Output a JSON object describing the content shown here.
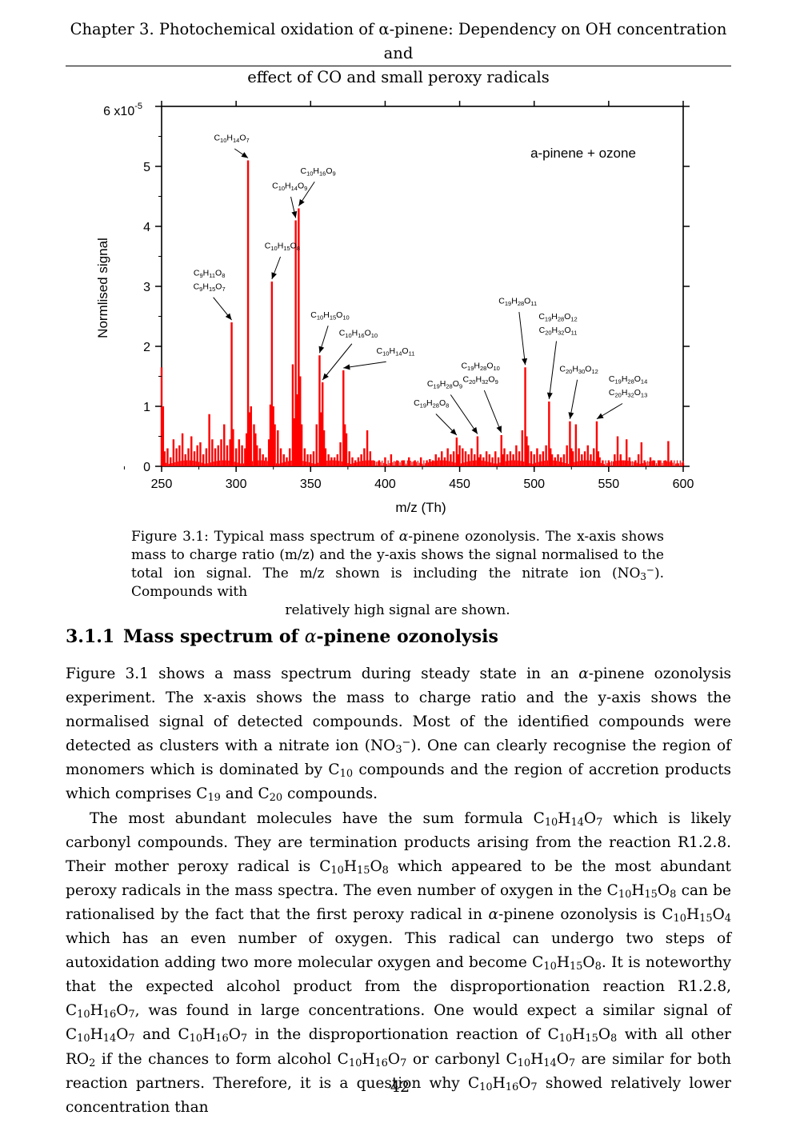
{
  "running_head": {
    "line1": "Chapter 3.  Photochemical oxidation of α-pinene: Dependency on OH concentration and",
    "line2": "effect of CO and small peroxy radicals"
  },
  "chart_data": {
    "type": "bar",
    "inset_title": "a-pinene + ozone",
    "xlabel": "m/z (Th)",
    "ylabel": "Normlised signal",
    "xlim": [
      250,
      600
    ],
    "ylim": [
      0,
      6e-05
    ],
    "x_ticks": [
      "250",
      "300",
      "350",
      "400",
      "450",
      "500",
      "550",
      "600"
    ],
    "y_ticks": [
      "0",
      "1",
      "2",
      "3",
      "4",
      "5",
      "6 x10"
    ],
    "y_multiplier": "x10",
    "y_exponent": "-5",
    "bar_color": "#ff0000",
    "peaks": [
      {
        "x": 250,
        "y": 1.65
      },
      {
        "x": 251,
        "y": 1.0
      },
      {
        "x": 252,
        "y": 0.25
      },
      {
        "x": 254,
        "y": 0.3
      },
      {
        "x": 256,
        "y": 0.15
      },
      {
        "x": 258,
        "y": 0.45
      },
      {
        "x": 260,
        "y": 0.3
      },
      {
        "x": 262,
        "y": 0.35
      },
      {
        "x": 264,
        "y": 0.55
      },
      {
        "x": 266,
        "y": 0.2
      },
      {
        "x": 268,
        "y": 0.3
      },
      {
        "x": 270,
        "y": 0.5
      },
      {
        "x": 272,
        "y": 0.25
      },
      {
        "x": 274,
        "y": 0.35
      },
      {
        "x": 276,
        "y": 0.4
      },
      {
        "x": 278,
        "y": 0.2
      },
      {
        "x": 280,
        "y": 0.3
      },
      {
        "x": 282,
        "y": 0.87
      },
      {
        "x": 284,
        "y": 0.45
      },
      {
        "x": 286,
        "y": 0.3
      },
      {
        "x": 288,
        "y": 0.35
      },
      {
        "x": 290,
        "y": 0.45
      },
      {
        "x": 292,
        "y": 0.7
      },
      {
        "x": 294,
        "y": 0.35
      },
      {
        "x": 296,
        "y": 0.45
      },
      {
        "x": 297,
        "y": 2.4
      },
      {
        "x": 298,
        "y": 0.62
      },
      {
        "x": 300,
        "y": 0.3
      },
      {
        "x": 302,
        "y": 0.45
      },
      {
        "x": 304,
        "y": 0.35
      },
      {
        "x": 306,
        "y": 0.3
      },
      {
        "x": 307,
        "y": 0.55
      },
      {
        "x": 308,
        "y": 5.1
      },
      {
        "x": 309,
        "y": 0.9
      },
      {
        "x": 310,
        "y": 1.0
      },
      {
        "x": 312,
        "y": 0.7
      },
      {
        "x": 313,
        "y": 0.55
      },
      {
        "x": 314,
        "y": 0.35
      },
      {
        "x": 316,
        "y": 0.3
      },
      {
        "x": 318,
        "y": 0.2
      },
      {
        "x": 320,
        "y": 0.15
      },
      {
        "x": 322,
        "y": 0.45
      },
      {
        "x": 323,
        "y": 1.03
      },
      {
        "x": 324,
        "y": 3.08
      },
      {
        "x": 325,
        "y": 1.0
      },
      {
        "x": 326,
        "y": 0.7
      },
      {
        "x": 328,
        "y": 0.6
      },
      {
        "x": 330,
        "y": 0.3
      },
      {
        "x": 332,
        "y": 0.2
      },
      {
        "x": 334,
        "y": 0.15
      },
      {
        "x": 336,
        "y": 0.3
      },
      {
        "x": 338,
        "y": 1.7
      },
      {
        "x": 339,
        "y": 0.8
      },
      {
        "x": 340,
        "y": 4.1
      },
      {
        "x": 341,
        "y": 1.2
      },
      {
        "x": 342,
        "y": 4.3
      },
      {
        "x": 343,
        "y": 1.5
      },
      {
        "x": 344,
        "y": 0.7
      },
      {
        "x": 346,
        "y": 0.3
      },
      {
        "x": 348,
        "y": 0.2
      },
      {
        "x": 350,
        "y": 0.2
      },
      {
        "x": 352,
        "y": 0.25
      },
      {
        "x": 354,
        "y": 0.7
      },
      {
        "x": 356,
        "y": 1.85
      },
      {
        "x": 357,
        "y": 0.9
      },
      {
        "x": 358,
        "y": 1.4
      },
      {
        "x": 359,
        "y": 0.6
      },
      {
        "x": 360,
        "y": 0.3
      },
      {
        "x": 362,
        "y": 0.2
      },
      {
        "x": 364,
        "y": 0.15
      },
      {
        "x": 366,
        "y": 0.15
      },
      {
        "x": 368,
        "y": 0.2
      },
      {
        "x": 370,
        "y": 0.4
      },
      {
        "x": 372,
        "y": 1.6
      },
      {
        "x": 373,
        "y": 0.7
      },
      {
        "x": 374,
        "y": 0.55
      },
      {
        "x": 376,
        "y": 0.25
      },
      {
        "x": 378,
        "y": 0.15
      },
      {
        "x": 380,
        "y": 0.1
      },
      {
        "x": 382,
        "y": 0.15
      },
      {
        "x": 384,
        "y": 0.2
      },
      {
        "x": 386,
        "y": 0.3
      },
      {
        "x": 388,
        "y": 0.6
      },
      {
        "x": 390,
        "y": 0.25
      },
      {
        "x": 392,
        "y": 0.1
      },
      {
        "x": 396,
        "y": 0.1
      },
      {
        "x": 400,
        "y": 0.15
      },
      {
        "x": 404,
        "y": 0.2
      },
      {
        "x": 408,
        "y": 0.1
      },
      {
        "x": 412,
        "y": 0.1
      },
      {
        "x": 416,
        "y": 0.15
      },
      {
        "x": 420,
        "y": 0.1
      },
      {
        "x": 424,
        "y": 0.15
      },
      {
        "x": 428,
        "y": 0.1
      },
      {
        "x": 430,
        "y": 0.12
      },
      {
        "x": 432,
        "y": 0.1
      },
      {
        "x": 434,
        "y": 0.2
      },
      {
        "x": 436,
        "y": 0.15
      },
      {
        "x": 438,
        "y": 0.25
      },
      {
        "x": 440,
        "y": 0.15
      },
      {
        "x": 442,
        "y": 0.3
      },
      {
        "x": 444,
        "y": 0.2
      },
      {
        "x": 446,
        "y": 0.25
      },
      {
        "x": 448,
        "y": 0.48
      },
      {
        "x": 449,
        "y": 0.2
      },
      {
        "x": 450,
        "y": 0.35
      },
      {
        "x": 452,
        "y": 0.3
      },
      {
        "x": 454,
        "y": 0.25
      },
      {
        "x": 456,
        "y": 0.2
      },
      {
        "x": 458,
        "y": 0.3
      },
      {
        "x": 460,
        "y": 0.2
      },
      {
        "x": 462,
        "y": 0.5
      },
      {
        "x": 463,
        "y": 0.15
      },
      {
        "x": 464,
        "y": 0.2
      },
      {
        "x": 466,
        "y": 0.15
      },
      {
        "x": 468,
        "y": 0.25
      },
      {
        "x": 470,
        "y": 0.2
      },
      {
        "x": 472,
        "y": 0.15
      },
      {
        "x": 474,
        "y": 0.25
      },
      {
        "x": 476,
        "y": 0.15
      },
      {
        "x": 478,
        "y": 0.52
      },
      {
        "x": 479,
        "y": 0.2
      },
      {
        "x": 480,
        "y": 0.3
      },
      {
        "x": 482,
        "y": 0.2
      },
      {
        "x": 484,
        "y": 0.25
      },
      {
        "x": 486,
        "y": 0.2
      },
      {
        "x": 488,
        "y": 0.35
      },
      {
        "x": 490,
        "y": 0.25
      },
      {
        "x": 492,
        "y": 0.6
      },
      {
        "x": 494,
        "y": 1.65
      },
      {
        "x": 495,
        "y": 0.5
      },
      {
        "x": 496,
        "y": 0.35
      },
      {
        "x": 498,
        "y": 0.25
      },
      {
        "x": 500,
        "y": 0.2
      },
      {
        "x": 502,
        "y": 0.3
      },
      {
        "x": 504,
        "y": 0.2
      },
      {
        "x": 506,
        "y": 0.25
      },
      {
        "x": 508,
        "y": 0.35
      },
      {
        "x": 510,
        "y": 1.08
      },
      {
        "x": 511,
        "y": 0.3
      },
      {
        "x": 512,
        "y": 0.2
      },
      {
        "x": 514,
        "y": 0.15
      },
      {
        "x": 516,
        "y": 0.2
      },
      {
        "x": 518,
        "y": 0.15
      },
      {
        "x": 520,
        "y": 0.2
      },
      {
        "x": 522,
        "y": 0.35
      },
      {
        "x": 524,
        "y": 0.75
      },
      {
        "x": 525,
        "y": 0.3
      },
      {
        "x": 526,
        "y": 0.25
      },
      {
        "x": 528,
        "y": 0.7
      },
      {
        "x": 530,
        "y": 0.3
      },
      {
        "x": 532,
        "y": 0.2
      },
      {
        "x": 534,
        "y": 0.25
      },
      {
        "x": 536,
        "y": 0.35
      },
      {
        "x": 538,
        "y": 0.2
      },
      {
        "x": 540,
        "y": 0.3
      },
      {
        "x": 542,
        "y": 0.75
      },
      {
        "x": 543,
        "y": 0.25
      },
      {
        "x": 544,
        "y": 0.15
      },
      {
        "x": 546,
        "y": 0.1
      },
      {
        "x": 550,
        "y": 0.1
      },
      {
        "x": 554,
        "y": 0.2
      },
      {
        "x": 556,
        "y": 0.5
      },
      {
        "x": 558,
        "y": 0.2
      },
      {
        "x": 560,
        "y": 0.1
      },
      {
        "x": 562,
        "y": 0.45
      },
      {
        "x": 564,
        "y": 0.15
      },
      {
        "x": 568,
        "y": 0.1
      },
      {
        "x": 570,
        "y": 0.2
      },
      {
        "x": 572,
        "y": 0.4
      },
      {
        "x": 574,
        "y": 0.1
      },
      {
        "x": 578,
        "y": 0.15
      },
      {
        "x": 580,
        "y": 0.1
      },
      {
        "x": 584,
        "y": 0.1
      },
      {
        "x": 588,
        "y": 0.1
      },
      {
        "x": 590,
        "y": 0.42
      },
      {
        "x": 592,
        "y": 0.1
      },
      {
        "x": 596,
        "y": 0.05
      },
      {
        "x": 600,
        "y": 0.05
      }
    ],
    "annotations": [
      {
        "label_lines": [
          "C10H14O7"
        ],
        "peak_x": 308,
        "peak_y": 5.1,
        "label_x": 297,
        "label_y": 5.4,
        "arrow": "diag"
      },
      {
        "label_lines": [
          "C10H16O9"
        ],
        "peak_x": 342,
        "peak_y": 4.3,
        "label_x": 355,
        "label_y": 4.85,
        "arrow": "diag"
      },
      {
        "label_lines": [
          "C10H14O9"
        ],
        "peak_x": 340,
        "peak_y": 4.1,
        "label_x": 336,
        "label_y": 4.6,
        "arrow": "diag"
      },
      {
        "label_lines": [
          "C10H15O8"
        ],
        "peak_x": 324,
        "peak_y": 3.08,
        "label_x": 331,
        "label_y": 3.6,
        "arrow": "diag"
      },
      {
        "label_lines": [
          "C9H11O8",
          "C9H15O7"
        ],
        "peak_x": 297,
        "peak_y": 2.4,
        "label_x": 282,
        "label_y": 3.15,
        "arrow": "diag"
      },
      {
        "label_lines": [
          "C10H15O10"
        ],
        "peak_x": 356,
        "peak_y": 1.85,
        "label_x": 363,
        "label_y": 2.45,
        "arrow": "diag"
      },
      {
        "label_lines": [
          "C10H16O10"
        ],
        "peak_x": 358,
        "peak_y": 1.4,
        "label_x": 382,
        "label_y": 2.15,
        "arrow": "diag"
      },
      {
        "label_lines": [
          "C10H14O11"
        ],
        "peak_x": 372,
        "peak_y": 1.6,
        "label_x": 407,
        "label_y": 1.85,
        "arrow": "diag"
      },
      {
        "label_lines": [
          "C19H28O11"
        ],
        "peak_x": 494,
        "peak_y": 1.65,
        "label_x": 489,
        "label_y": 2.68,
        "arrow": "diag"
      },
      {
        "label_lines": [
          "C19H28O12",
          "C20H32O11"
        ],
        "peak_x": 510,
        "peak_y": 1.08,
        "label_x": 516,
        "label_y": 2.42,
        "arrow": "diag"
      },
      {
        "label_lines": [
          "C19H28O10",
          "C20H32O9"
        ],
        "peak_x": 478,
        "peak_y": 0.52,
        "label_x": 464,
        "label_y": 1.6,
        "arrow": "diag"
      },
      {
        "label_lines": [
          "C19H28O9"
        ],
        "peak_x": 462,
        "peak_y": 0.5,
        "label_x": 440,
        "label_y": 1.3,
        "arrow": "diag"
      },
      {
        "label_lines": [
          "C19H28O8"
        ],
        "peak_x": 448,
        "peak_y": 0.48,
        "label_x": 431,
        "label_y": 0.98,
        "arrow": "diag"
      },
      {
        "label_lines": [
          "C20H30O12"
        ],
        "peak_x": 524,
        "peak_y": 0.75,
        "label_x": 530,
        "label_y": 1.55,
        "arrow": "diag"
      },
      {
        "label_lines": [
          "C19H28O14",
          "C20H32O13"
        ],
        "peak_x": 542,
        "peak_y": 0.75,
        "label_x": 563,
        "label_y": 1.38,
        "arrow": "diag"
      }
    ]
  },
  "caption": {
    "text_a": "Figure 3.1: Typical mass spectrum of ",
    "alpha": "α",
    "text_b": "-pinene ozonolysis. The x-axis shows mass to charge ratio (m/z) and the y-axis shows the signal normalised to the total ion signal.  The m/z shown is including the nitrate ion (NO",
    "sub3": "3",
    "sup_minus": "−",
    "text_c": ").  Compounds with",
    "last_line": "relatively high signal are shown."
  },
  "section": {
    "number": "3.1.1",
    "title_a": "Mass spectrum of ",
    "alpha": "α",
    "title_b": "-pinene ozonolysis"
  },
  "page_number": "42"
}
